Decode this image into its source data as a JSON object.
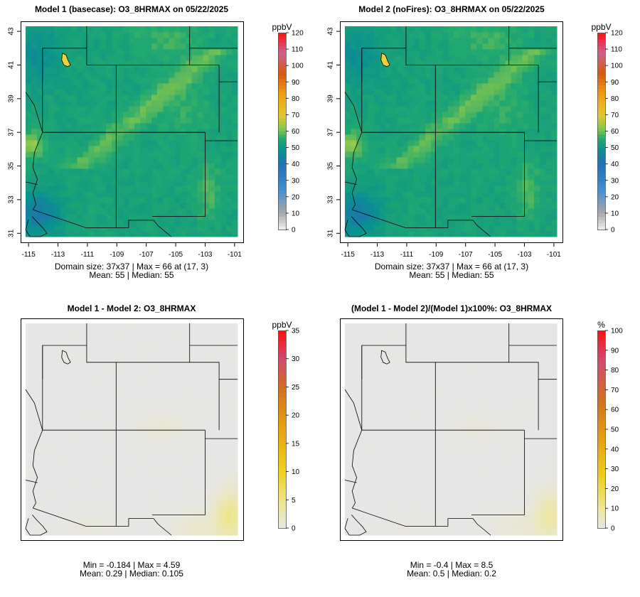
{
  "figure": {
    "panels": [
      {
        "id": "model1",
        "title": "Model 1 (basecase): O3_8HRMAX on 05/22/2025",
        "colorbar_unit": "ppbV",
        "colorbar_ticks": [
          "0",
          "10",
          "20",
          "30",
          "40",
          "50",
          "60",
          "70",
          "80",
          "90",
          "100",
          "110",
          "120"
        ],
        "info_line1": "Domain size: 37x37 | Max = 66 at (17, 3)",
        "info_line2": "Mean: 55 |  Median: 55",
        "show_axes": true
      },
      {
        "id": "model2",
        "title": "Model 2 (noFires): O3_8HRMAX on 05/22/2025",
        "colorbar_unit": "ppbV",
        "colorbar_ticks": [
          "0",
          "10",
          "20",
          "30",
          "40",
          "50",
          "60",
          "70",
          "80",
          "90",
          "100",
          "110",
          "120"
        ],
        "info_line1": "Domain size: 37x37 | Max = 66 at (17, 3)",
        "info_line2": "Mean: 55 |  Median: 55",
        "show_axes": true
      },
      {
        "id": "diff",
        "title": "Model 1 - Model 2: O3_8HRMAX",
        "colorbar_unit": "ppbV",
        "colorbar_ticks": [
          "0",
          "5",
          "10",
          "15",
          "20",
          "25",
          "30",
          "35"
        ],
        "info_line1": "Min = -0.184 | Max = 4.59",
        "info_line2": "Mean: 0.29 |  Median: 0.105",
        "show_axes": false
      },
      {
        "id": "pctdiff",
        "title": "(Model 1 - Model 2)/(Model 1)x100%: O3_8HRMAX",
        "colorbar_unit": "%",
        "colorbar_ticks": [
          "0",
          "10",
          "20",
          "30",
          "40",
          "50",
          "60",
          "70",
          "80",
          "90",
          "100"
        ],
        "info_line1": "Min = -0.4 | Max = 8.5",
        "info_line2": "Mean: 0.5 |  Median: 0.2",
        "show_axes": false
      }
    ]
  },
  "chart_data": [
    {
      "type": "heatmap",
      "title": "Model 1 (basecase): O3_8HRMAX on 05/22/2025",
      "variable": "O3_8HRMAX",
      "date": "05/22/2025",
      "grid": [
        37,
        37
      ],
      "xlabel": "",
      "ylabel": "",
      "x_ticks": [
        "-115",
        "-113",
        "-111",
        "-109",
        "-107",
        "-105",
        "-103",
        "-101"
      ],
      "y_ticks": [
        "31",
        "33",
        "35",
        "37",
        "39",
        "41",
        "43"
      ],
      "xlim": [
        -115.2,
        -100.8
      ],
      "ylim": [
        30.8,
        43.3
      ],
      "units": "ppbV",
      "colorbar_range": [
        0,
        120
      ],
      "stats": {
        "max": 66,
        "max_at": [
          17,
          3
        ],
        "mean": 55,
        "median": 55
      }
    },
    {
      "type": "heatmap",
      "title": "Model 2 (noFires): O3_8HRMAX on 05/22/2025",
      "variable": "O3_8HRMAX",
      "date": "05/22/2025",
      "grid": [
        37,
        37
      ],
      "x_ticks": [
        "-115",
        "-113",
        "-111",
        "-109",
        "-107",
        "-105",
        "-103",
        "-101"
      ],
      "y_ticks": [
        "31",
        "33",
        "35",
        "37",
        "39",
        "41",
        "43"
      ],
      "xlim": [
        -115.2,
        -100.8
      ],
      "ylim": [
        30.8,
        43.3
      ],
      "units": "ppbV",
      "colorbar_range": [
        0,
        120
      ],
      "stats": {
        "max": 66,
        "max_at": [
          17,
          3
        ],
        "mean": 55,
        "median": 55
      }
    },
    {
      "type": "heatmap",
      "title": "Model 1 - Model 2: O3_8HRMAX",
      "units": "ppbV",
      "colorbar_range": [
        0,
        35
      ],
      "stats": {
        "min": -0.184,
        "max": 4.59,
        "mean": 0.29,
        "median": 0.105
      }
    },
    {
      "type": "heatmap",
      "title": "(Model 1 - Model 2)/(Model 1)x100%: O3_8HRMAX",
      "units": "%",
      "colorbar_range": [
        0,
        100
      ],
      "stats": {
        "min": -0.4,
        "max": 8.5,
        "mean": 0.5,
        "median": 0.2
      }
    }
  ]
}
